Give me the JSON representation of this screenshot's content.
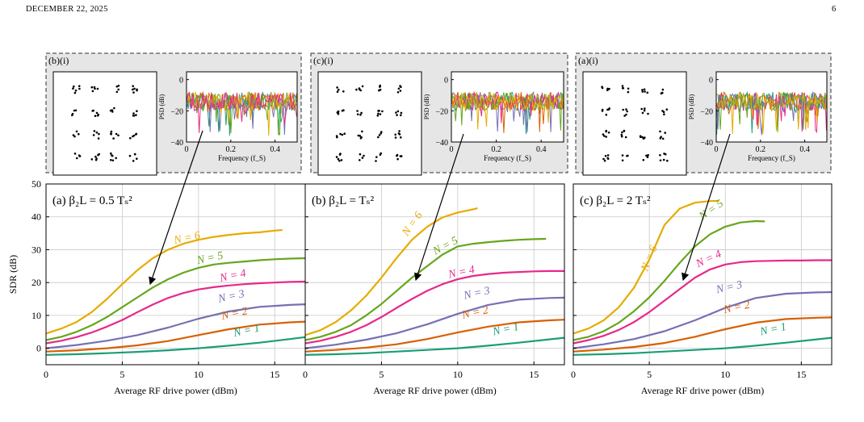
{
  "header": {
    "date": "DECEMBER 22, 2025",
    "page_number": "6"
  },
  "colors": {
    "N1": "#1b9e77",
    "N2": "#d95f02",
    "N3": "#7570b3",
    "N4": "#e7298a",
    "N5": "#66a61e",
    "N6": "#e6ab02",
    "inset_bg": "#e6e6e6",
    "grid": "#c8c8c8"
  },
  "insets": [
    {
      "label": "(b)(i)",
      "psd": {
        "ylabel": "PSD (dB)",
        "xlabel": "Frequency (f_S)",
        "yticks": [
          "0",
          "−20",
          "−40"
        ],
        "xticks": [
          "0",
          "0.2",
          "0.4"
        ]
      }
    },
    {
      "label": "(c)(i)",
      "psd": {
        "ylabel": "PSD (dB)",
        "xlabel": "Frequency (f_S)",
        "yticks": [
          "0",
          "−20",
          "−40"
        ],
        "xticks": [
          "0",
          "0.2",
          "0.4"
        ]
      }
    },
    {
      "label": "(a)(i)",
      "psd": {
        "ylabel": "PSD (dB)",
        "xlabel": "Frequency (f_S)",
        "yticks": [
          "0",
          "−20",
          "−40"
        ],
        "xticks": [
          "0",
          "0.2",
          "0.4"
        ]
      }
    }
  ],
  "chart_data": [
    {
      "type": "line",
      "panel_label": "(a) β₂L = 0.5 Tₛ²",
      "xlabel": "Average RF drive power (dBm)",
      "ylabel": "SDR (dB)",
      "xlim": [
        0,
        17
      ],
      "ylim": [
        -5,
        50
      ],
      "xticks": [
        0,
        5,
        10,
        15
      ],
      "yticks": [
        0,
        10,
        20,
        30,
        40,
        50
      ],
      "series": [
        {
          "name": "N = 1",
          "x": [
            0,
            2,
            4,
            6,
            8,
            10,
            12,
            14,
            16,
            17
          ],
          "y": [
            -2,
            -1.8,
            -1.5,
            -1.1,
            -0.6,
            0,
            0.8,
            1.7,
            2.8,
            3.4
          ]
        },
        {
          "name": "N = 2",
          "x": [
            0,
            2,
            4,
            6,
            8,
            10,
            12,
            14,
            16,
            17
          ],
          "y": [
            -1,
            -0.6,
            0,
            0.9,
            2.2,
            4,
            5.8,
            7.2,
            7.9,
            8.1
          ]
        },
        {
          "name": "N = 3",
          "x": [
            0,
            2,
            4,
            6,
            8,
            10,
            12,
            14,
            16,
            17
          ],
          "y": [
            0,
            1,
            2.3,
            4,
            6.3,
            9,
            11.2,
            12.6,
            13.2,
            13.4
          ]
        },
        {
          "name": "N = 4",
          "x": [
            0,
            1,
            2,
            3,
            4,
            5,
            6,
            7,
            8,
            9,
            10,
            11,
            12,
            13,
            14,
            15,
            16,
            17
          ],
          "y": [
            1.5,
            2.3,
            3.4,
            4.8,
            6.6,
            8.6,
            11,
            13.3,
            15.3,
            16.8,
            17.9,
            18.6,
            19.1,
            19.5,
            19.8,
            20,
            20.2,
            20.3
          ]
        },
        {
          "name": "N = 5",
          "x": [
            0,
            1,
            2,
            3,
            4,
            5,
            6,
            7,
            8,
            9,
            10,
            11,
            12,
            13,
            14,
            15,
            16,
            17
          ],
          "y": [
            2.5,
            3.5,
            5,
            7,
            9.5,
            12.5,
            15.5,
            18.5,
            21,
            23,
            24.5,
            25.5,
            26,
            26.4,
            26.8,
            27.1,
            27.3,
            27.4
          ]
        },
        {
          "name": "N = 6",
          "x": [
            0,
            1,
            2,
            3,
            4,
            5,
            6,
            7,
            8,
            9,
            10,
            11,
            12,
            13,
            14,
            15,
            15.5
          ],
          "y": [
            4.5,
            6,
            8,
            11,
            15,
            19.5,
            23.8,
            27.4,
            30,
            31.8,
            33,
            33.9,
            34.5,
            35,
            35.3,
            35.8,
            36
          ]
        }
      ],
      "labels": [
        {
          "text": "N = 6",
          "x": 9.3,
          "y": 32.6
        },
        {
          "text": "N = 5",
          "x": 10.8,
          "y": 26.5
        },
        {
          "text": "N = 4",
          "x": 12.3,
          "y": 21.1
        },
        {
          "text": "N = 3",
          "x": 12.2,
          "y": 14.8
        },
        {
          "text": "N = 2",
          "x": 12.4,
          "y": 9.6
        },
        {
          "text": "N = 1",
          "x": 13.2,
          "y": 4.4
        }
      ]
    },
    {
      "type": "line",
      "panel_label": "(b) β₂L = Tₛ²",
      "xlabel": "Average RF drive power (dBm)",
      "ylabel": "",
      "xlim": [
        0,
        17
      ],
      "ylim": [
        -5,
        50
      ],
      "xticks": [
        0,
        5,
        10,
        15
      ],
      "yticks": [
        0,
        10,
        20,
        30,
        40,
        50
      ],
      "series": [
        {
          "name": "N = 1",
          "x": [
            0,
            2,
            4,
            6,
            8,
            10,
            12,
            14,
            16,
            17
          ],
          "y": [
            -2,
            -1.8,
            -1.5,
            -1,
            -0.5,
            0,
            0.8,
            1.7,
            2.7,
            3.2
          ]
        },
        {
          "name": "N = 2",
          "x": [
            0,
            2,
            4,
            6,
            8,
            10,
            12,
            14,
            16,
            17
          ],
          "y": [
            -1,
            -0.5,
            0.2,
            1.2,
            2.8,
            4.8,
            6.6,
            7.9,
            8.5,
            8.7
          ]
        },
        {
          "name": "N = 3",
          "x": [
            0,
            2,
            4,
            6,
            8,
            10,
            12,
            14,
            16,
            17
          ],
          "y": [
            0,
            1.1,
            2.6,
            4.6,
            7.3,
            10.5,
            13.2,
            14.8,
            15.3,
            15.4
          ]
        },
        {
          "name": "N = 4",
          "x": [
            0,
            1,
            2,
            3,
            4,
            5,
            6,
            7,
            8,
            9,
            10,
            11,
            12,
            13,
            14,
            15,
            16,
            17
          ],
          "y": [
            1.5,
            2.3,
            3.5,
            5,
            7,
            9.5,
            12.3,
            15,
            17.5,
            19.5,
            21,
            22,
            22.6,
            23,
            23.2,
            23.4,
            23.5,
            23.5
          ]
        },
        {
          "name": "N = 5",
          "x": [
            0,
            1,
            2,
            3,
            4,
            5,
            6,
            7,
            8,
            9,
            10,
            11,
            12,
            13,
            14,
            15,
            15.8
          ],
          "y": [
            2.5,
            3.5,
            5,
            7,
            10,
            13.5,
            17.5,
            21.5,
            25,
            28.5,
            31,
            31.8,
            32.3,
            32.7,
            33,
            33.2,
            33.3
          ]
        },
        {
          "name": "N = 6",
          "x": [
            0,
            1,
            2,
            3,
            4,
            5,
            6,
            7,
            8,
            9,
            10,
            11,
            11.3
          ],
          "y": [
            4,
            5.5,
            8,
            11.5,
            16,
            21.5,
            27.5,
            33,
            37,
            39.8,
            41.3,
            42.3,
            42.6
          ]
        }
      ],
      "labels": [
        {
          "text": "N = 6",
          "x": 7.2,
          "y": 37.3
        },
        {
          "text": "N = 5",
          "x": 9.3,
          "y": 30.3
        },
        {
          "text": "N = 4",
          "x": 10.3,
          "y": 22.2
        },
        {
          "text": "N = 3",
          "x": 11.3,
          "y": 15.8
        },
        {
          "text": "N = 2",
          "x": 11.2,
          "y": 9.9
        },
        {
          "text": "N = 1",
          "x": 13.2,
          "y": 4.8
        }
      ]
    },
    {
      "type": "line",
      "panel_label": "(c) β₂L = 2 Tₛ²",
      "xlabel": "Average RF drive power (dBm)",
      "ylabel": "",
      "xlim": [
        0,
        17
      ],
      "ylim": [
        -5,
        50
      ],
      "xticks": [
        0,
        5,
        10,
        15
      ],
      "yticks": [
        0,
        10,
        20,
        30,
        40,
        50
      ],
      "series": [
        {
          "name": "N = 1",
          "x": [
            0,
            2,
            4,
            6,
            8,
            10,
            12,
            14,
            16,
            17
          ],
          "y": [
            -2,
            -1.8,
            -1.5,
            -1,
            -0.5,
            0,
            0.8,
            1.7,
            2.7,
            3.2
          ]
        },
        {
          "name": "N = 2",
          "x": [
            0,
            2,
            4,
            6,
            8,
            10,
            12,
            14,
            16,
            17
          ],
          "y": [
            -1,
            -0.4,
            0.4,
            1.6,
            3.5,
            5.8,
            7.8,
            8.9,
            9.3,
            9.4
          ]
        },
        {
          "name": "N = 3",
          "x": [
            0,
            2,
            4,
            6,
            8,
            10,
            12,
            14,
            16,
            17
          ],
          "y": [
            0,
            1.2,
            2.8,
            5.2,
            8.5,
            12.3,
            15.3,
            16.6,
            17,
            17.1
          ]
        },
        {
          "name": "N = 4",
          "x": [
            0,
            1,
            2,
            3,
            4,
            5,
            6,
            7,
            8,
            9,
            10,
            11,
            12,
            13,
            14,
            15,
            16,
            17
          ],
          "y": [
            1.5,
            2.5,
            3.8,
            5.6,
            8,
            11,
            14.5,
            18,
            21.5,
            24,
            25.5,
            26.2,
            26.5,
            26.6,
            26.7,
            26.7,
            26.8,
            26.8
          ]
        },
        {
          "name": "N = 5",
          "x": [
            0,
            1,
            2,
            3,
            4,
            5,
            6,
            7,
            8,
            9,
            10,
            11,
            12,
            12.6
          ],
          "y": [
            2.5,
            3.5,
            5.2,
            7.8,
            11.3,
            15.5,
            20.5,
            26,
            31,
            34.7,
            37,
            38.3,
            38.7,
            38.6
          ]
        },
        {
          "name": "N = 6",
          "x": [
            0,
            1,
            2,
            3,
            4,
            5,
            6,
            7,
            8,
            9,
            9.6
          ],
          "y": [
            4.5,
            6,
            8.5,
            12.5,
            18.5,
            27,
            37.5,
            42.5,
            44.3,
            44.8,
            44.9
          ]
        }
      ],
      "labels": [
        {
          "text": "N = 6",
          "x": 5.2,
          "y": 27
        },
        {
          "text": "N = 5",
          "x": 9.2,
          "y": 41.3
        },
        {
          "text": "N = 4",
          "x": 9.0,
          "y": 26.3
        },
        {
          "text": "N = 3",
          "x": 10.3,
          "y": 17.6
        },
        {
          "text": "N = 2",
          "x": 10.8,
          "y": 11.5
        },
        {
          "text": "N = 1",
          "x": 13.2,
          "y": 4.8
        }
      ]
    }
  ]
}
